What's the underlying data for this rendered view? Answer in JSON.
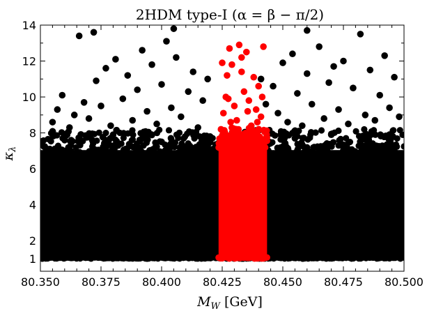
{
  "chart_data": {
    "type": "scatter",
    "title": "2HDM type-I (α = β − π/2)",
    "xlabel": "M_W [GeV]",
    "xlabel_main": "M",
    "xlabel_sub": "W",
    "xlabel_unit": " [GeV]",
    "ylabel": "κ_λ",
    "ylabel_main": "κ",
    "ylabel_sub": "λ",
    "xlim": [
      80.35,
      80.5
    ],
    "ylim": [
      0.3,
      14
    ],
    "xticks": [
      80.35,
      80.375,
      80.4,
      80.425,
      80.45,
      80.475,
      80.5
    ],
    "xtick_labels": [
      "80.350",
      "80.375",
      "80.400",
      "80.425",
      "80.450",
      "80.475",
      "80.500"
    ],
    "yticks": [
      1,
      2,
      4,
      6,
      8,
      10,
      12,
      14
    ],
    "ytick_labels": [
      "1",
      "2",
      "4",
      "6",
      "8",
      "10",
      "12",
      "14"
    ],
    "grid": false,
    "colors": {
      "black_series": "#000000",
      "red_series": "#ff0000"
    },
    "series": [
      {
        "color": "#000000",
        "dense_region": {
          "x": [
            80.35,
            80.5
          ],
          "y_min": 1.0,
          "y_max_typical": 7.2
        },
        "points": [
          [
            80.355,
            8.6
          ],
          [
            80.357,
            9.3
          ],
          [
            80.359,
            10.1
          ],
          [
            80.362,
            8.3
          ],
          [
            80.364,
            9.0
          ],
          [
            80.366,
            13.4
          ],
          [
            80.368,
            9.7
          ],
          [
            80.37,
            8.8
          ],
          [
            80.373,
            10.9
          ],
          [
            80.375,
            9.5
          ],
          [
            80.377,
            11.6
          ],
          [
            80.379,
            8.4
          ],
          [
            80.381,
            12.1
          ],
          [
            80.384,
            9.9
          ],
          [
            80.386,
            11.2
          ],
          [
            80.388,
            8.7
          ],
          [
            80.39,
            10.4
          ],
          [
            80.392,
            12.6
          ],
          [
            80.394,
            9.2
          ],
          [
            80.396,
            11.8
          ],
          [
            80.398,
            8.5
          ],
          [
            80.4,
            10.7
          ],
          [
            80.402,
            13.1
          ],
          [
            80.404,
            9.4
          ],
          [
            80.406,
            12.2
          ],
          [
            80.408,
            8.9
          ],
          [
            80.411,
            10.3
          ],
          [
            80.413,
            11.4
          ],
          [
            80.415,
            8.3
          ],
          [
            80.417,
            9.8
          ],
          [
            80.419,
            11.0
          ],
          [
            80.446,
            10.6
          ],
          [
            80.448,
            9.1
          ],
          [
            80.45,
            11.9
          ],
          [
            80.452,
            8.6
          ],
          [
            80.454,
            12.4
          ],
          [
            80.456,
            10.2
          ],
          [
            80.458,
            8.4
          ],
          [
            80.46,
            11.3
          ],
          [
            80.462,
            9.6
          ],
          [
            80.465,
            12.8
          ],
          [
            80.467,
            8.8
          ],
          [
            80.469,
            10.8
          ],
          [
            80.471,
            11.7
          ],
          [
            80.473,
            9.3
          ],
          [
            80.475,
            12.0
          ],
          [
            80.477,
            8.5
          ],
          [
            80.479,
            10.5
          ],
          [
            80.482,
            13.5
          ],
          [
            80.484,
            9.0
          ],
          [
            80.486,
            11.5
          ],
          [
            80.488,
            8.7
          ],
          [
            80.49,
            10.1
          ],
          [
            80.492,
            12.3
          ],
          [
            80.494,
            9.4
          ],
          [
            80.496,
            11.1
          ],
          [
            80.498,
            8.9
          ],
          [
            80.36,
            7.6
          ],
          [
            80.38,
            7.9
          ],
          [
            80.4,
            7.5
          ],
          [
            80.42,
            7.8
          ],
          [
            80.455,
            7.7
          ],
          [
            80.47,
            7.9
          ],
          [
            80.485,
            7.4
          ],
          [
            80.495,
            7.8
          ],
          [
            80.405,
            13.8
          ],
          [
            80.46,
            13.7
          ],
          [
            80.372,
            13.6
          ],
          [
            80.441,
            11.0
          ],
          [
            80.443,
            9.6
          ]
        ]
      },
      {
        "color": "#ff0000",
        "dense_region": {
          "x": [
            80.4235,
            80.4435
          ],
          "y_min": 1.0,
          "y_max_typical": 7.8
        },
        "points": [
          [
            80.4245,
            8.2
          ],
          [
            80.4255,
            9.1
          ],
          [
            80.4265,
            10.0
          ],
          [
            80.427,
            11.2
          ],
          [
            80.428,
            12.7
          ],
          [
            80.429,
            11.8
          ],
          [
            80.43,
            9.5
          ],
          [
            80.431,
            8.7
          ],
          [
            80.432,
            12.9
          ],
          [
            80.433,
            11.4
          ],
          [
            80.434,
            10.3
          ],
          [
            80.435,
            12.5
          ],
          [
            80.436,
            9.8
          ],
          [
            80.437,
            8.4
          ],
          [
            80.438,
            11.1
          ],
          [
            80.439,
            9.3
          ],
          [
            80.44,
            10.6
          ],
          [
            80.441,
            8.9
          ],
          [
            80.442,
            12.8
          ],
          [
            80.425,
            11.9
          ],
          [
            80.4275,
            9.9
          ],
          [
            80.4305,
            8.1
          ],
          [
            80.433,
            12.2
          ],
          [
            80.4355,
            9.2
          ],
          [
            80.4395,
            8.6
          ],
          [
            80.4415,
            10.0
          ],
          [
            80.426,
            8.0
          ],
          [
            80.4285,
            8.6
          ]
        ]
      }
    ]
  }
}
